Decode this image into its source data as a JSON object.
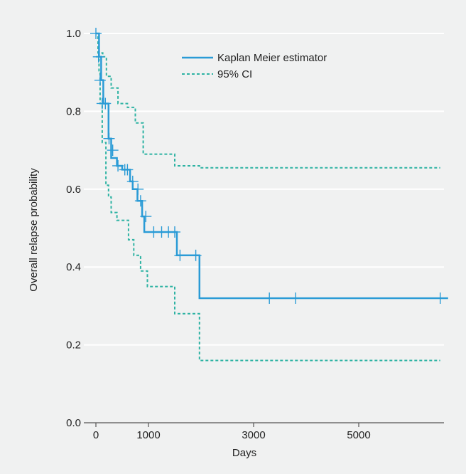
{
  "chart_data": {
    "type": "line",
    "title": "",
    "xlabel": "Days",
    "ylabel": "Overall relapse probability",
    "xlim": [
      -200,
      7000
    ],
    "ylim": [
      0,
      1.0
    ],
    "x_ticks": [
      0,
      1000,
      3000,
      5000
    ],
    "x_tick_labels": [
      "0",
      "1000",
      "3000",
      "5000"
    ],
    "y_ticks": [
      0,
      0.2,
      0.4,
      0.6,
      0.8,
      1.0
    ],
    "y_tick_labels": [
      "0.0",
      "0.2",
      "0.4",
      "0.6",
      "0.8",
      "1.0"
    ],
    "grid": "horizontal",
    "legend_position": "top-right",
    "series": [
      {
        "name": "Kaplan Meier estimator",
        "style": "solid",
        "color": "#2a9bd6",
        "step_x": [
          0,
          60,
          100,
          140,
          240,
          290,
          400,
          500,
          650,
          700,
          790,
          880,
          920,
          1540,
          1970,
          6700
        ],
        "step_y": [
          1.0,
          0.94,
          0.88,
          0.82,
          0.73,
          0.68,
          0.66,
          0.65,
          0.62,
          0.6,
          0.57,
          0.53,
          0.49,
          0.43,
          0.32,
          0.32
        ],
        "censor_x": [
          0,
          50,
          80,
          120,
          180,
          250,
          320,
          420,
          550,
          600,
          700,
          800,
          850,
          950,
          1100,
          1250,
          1380,
          1500,
          1600,
          1900,
          3300,
          3800,
          6550
        ],
        "censor_y": [
          1.0,
          0.94,
          0.88,
          0.82,
          0.82,
          0.73,
          0.7,
          0.66,
          0.65,
          0.65,
          0.62,
          0.6,
          0.57,
          0.53,
          0.49,
          0.49,
          0.49,
          0.49,
          0.43,
          0.43,
          0.32,
          0.32,
          0.32
        ]
      },
      {
        "name": "95% CI",
        "style": "dashed",
        "color": "#2eb3a3",
        "upper_x": [
          0,
          40,
          130,
          200,
          290,
          420,
          600,
          750,
          900,
          1500,
          1970,
          6550
        ],
        "upper_y": [
          1.0,
          0.95,
          0.94,
          0.89,
          0.86,
          0.82,
          0.81,
          0.77,
          0.69,
          0.66,
          0.655,
          0.655
        ],
        "lower_x": [
          0,
          60,
          80,
          120,
          190,
          240,
          290,
          400,
          620,
          720,
          850,
          980,
          1500,
          1970,
          6550
        ],
        "lower_y": [
          0.94,
          0.9,
          0.82,
          0.72,
          0.61,
          0.58,
          0.54,
          0.52,
          0.47,
          0.43,
          0.39,
          0.35,
          0.28,
          0.16,
          0.16
        ]
      }
    ]
  }
}
